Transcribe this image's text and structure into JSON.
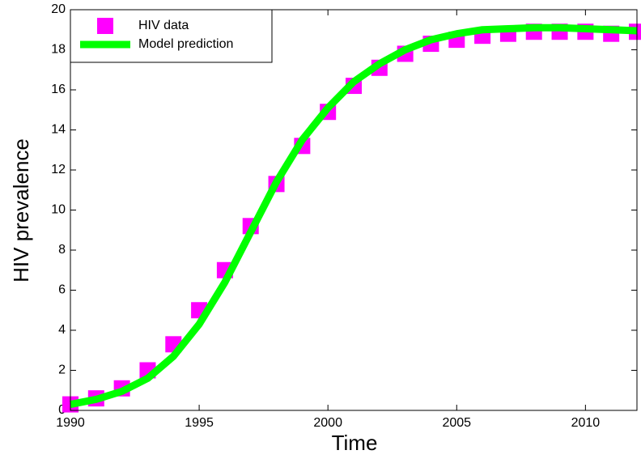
{
  "chart_data": {
    "type": "line",
    "x_label": "Time",
    "y_label": "HIV prevalence",
    "x": [
      1990,
      1991,
      1992,
      1993,
      1994,
      1995,
      1996,
      1997,
      1998,
      1999,
      2000,
      2001,
      2002,
      2003,
      2004,
      2005,
      2006,
      2007,
      2008,
      2009,
      2010,
      2011,
      2012
    ],
    "series": [
      {
        "name": "HIV data",
        "color": "#ff00ff",
        "marker": "square",
        "values": [
          0.3,
          0.6,
          1.1,
          2.0,
          3.3,
          5.0,
          7.0,
          9.2,
          11.3,
          13.2,
          14.9,
          16.2,
          17.1,
          17.8,
          18.3,
          18.5,
          18.7,
          18.8,
          18.9,
          18.9,
          18.9,
          18.8,
          18.9
        ]
      },
      {
        "name": "Model prediction",
        "color": "#00ff00",
        "values": [
          0.3,
          0.55,
          0.95,
          1.6,
          2.7,
          4.3,
          6.4,
          8.9,
          11.4,
          13.5,
          15.1,
          16.4,
          17.3,
          18.0,
          18.5,
          18.8,
          19.0,
          19.05,
          19.1,
          19.1,
          19.05,
          19.0,
          18.95
        ]
      }
    ],
    "xlim": [
      1990,
      2012
    ],
    "ylim": [
      0,
      20
    ],
    "xticks": [
      1990,
      1995,
      2000,
      2005,
      2010
    ],
    "yticks": [
      0,
      2,
      4,
      6,
      8,
      10,
      12,
      14,
      16,
      18,
      20
    ],
    "legend": "upper left"
  }
}
